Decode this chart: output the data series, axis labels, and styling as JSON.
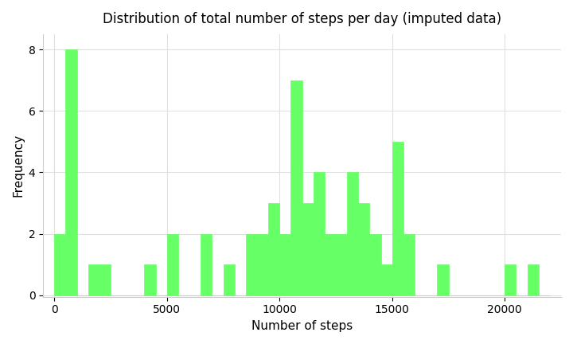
{
  "title": "Distribution of total number of steps per day (imputed data)",
  "xlabel": "Number of steps",
  "ylabel": "Frequency",
  "bar_color": "#66FF66",
  "bar_edge_color": "#66FF66",
  "background_color": "#ffffff",
  "grid_color": "#e0e0e0",
  "xlim": [
    -500,
    22500
  ],
  "ylim": [
    -0.05,
    8.5
  ],
  "yticks": [
    0,
    2,
    4,
    6,
    8
  ],
  "xticks": [
    0,
    5000,
    10000,
    15000,
    20000
  ],
  "bin_edges": [
    0,
    500,
    1000,
    1500,
    2000,
    2500,
    3000,
    3500,
    4000,
    4500,
    5000,
    5500,
    6000,
    6500,
    7000,
    7500,
    8000,
    8500,
    9000,
    9500,
    10000,
    10500,
    11000,
    11500,
    12000,
    12500,
    13000,
    13500,
    14000,
    14500,
    15000,
    15500,
    16000,
    16500,
    17000,
    17500,
    18000,
    18500,
    19000,
    19500,
    20000,
    20500,
    21000,
    21500,
    22000
  ],
  "frequencies": [
    2,
    8,
    0,
    1,
    1,
    0,
    0,
    0,
    1,
    0,
    2,
    0,
    0,
    2,
    0,
    1,
    0,
    2,
    2,
    3,
    2,
    7,
    3,
    4,
    2,
    2,
    4,
    3,
    2,
    1,
    5,
    2,
    0,
    0,
    1,
    0,
    0,
    0,
    0,
    0,
    1,
    0,
    1,
    0
  ]
}
